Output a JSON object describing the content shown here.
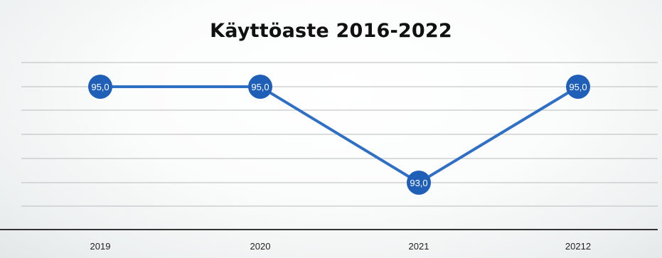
{
  "chart_data": {
    "type": "line",
    "title": "Käyttöaste 2016-2022",
    "categories": [
      "2019",
      "2020",
      "2021",
      "20212"
    ],
    "series": [
      {
        "values": [
          95.0,
          95.0,
          93.0,
          95.0
        ],
        "data_labels": [
          "95,0",
          "95,0",
          "93,0",
          "95,0"
        ]
      }
    ],
    "xlabel": "",
    "ylabel": "",
    "grid": true,
    "colors": {
      "line": "#2f6fc4",
      "marker": "#1f5fb8",
      "label": "#ffffff",
      "grid": "#b8bcbc",
      "axis": "#333333"
    }
  }
}
